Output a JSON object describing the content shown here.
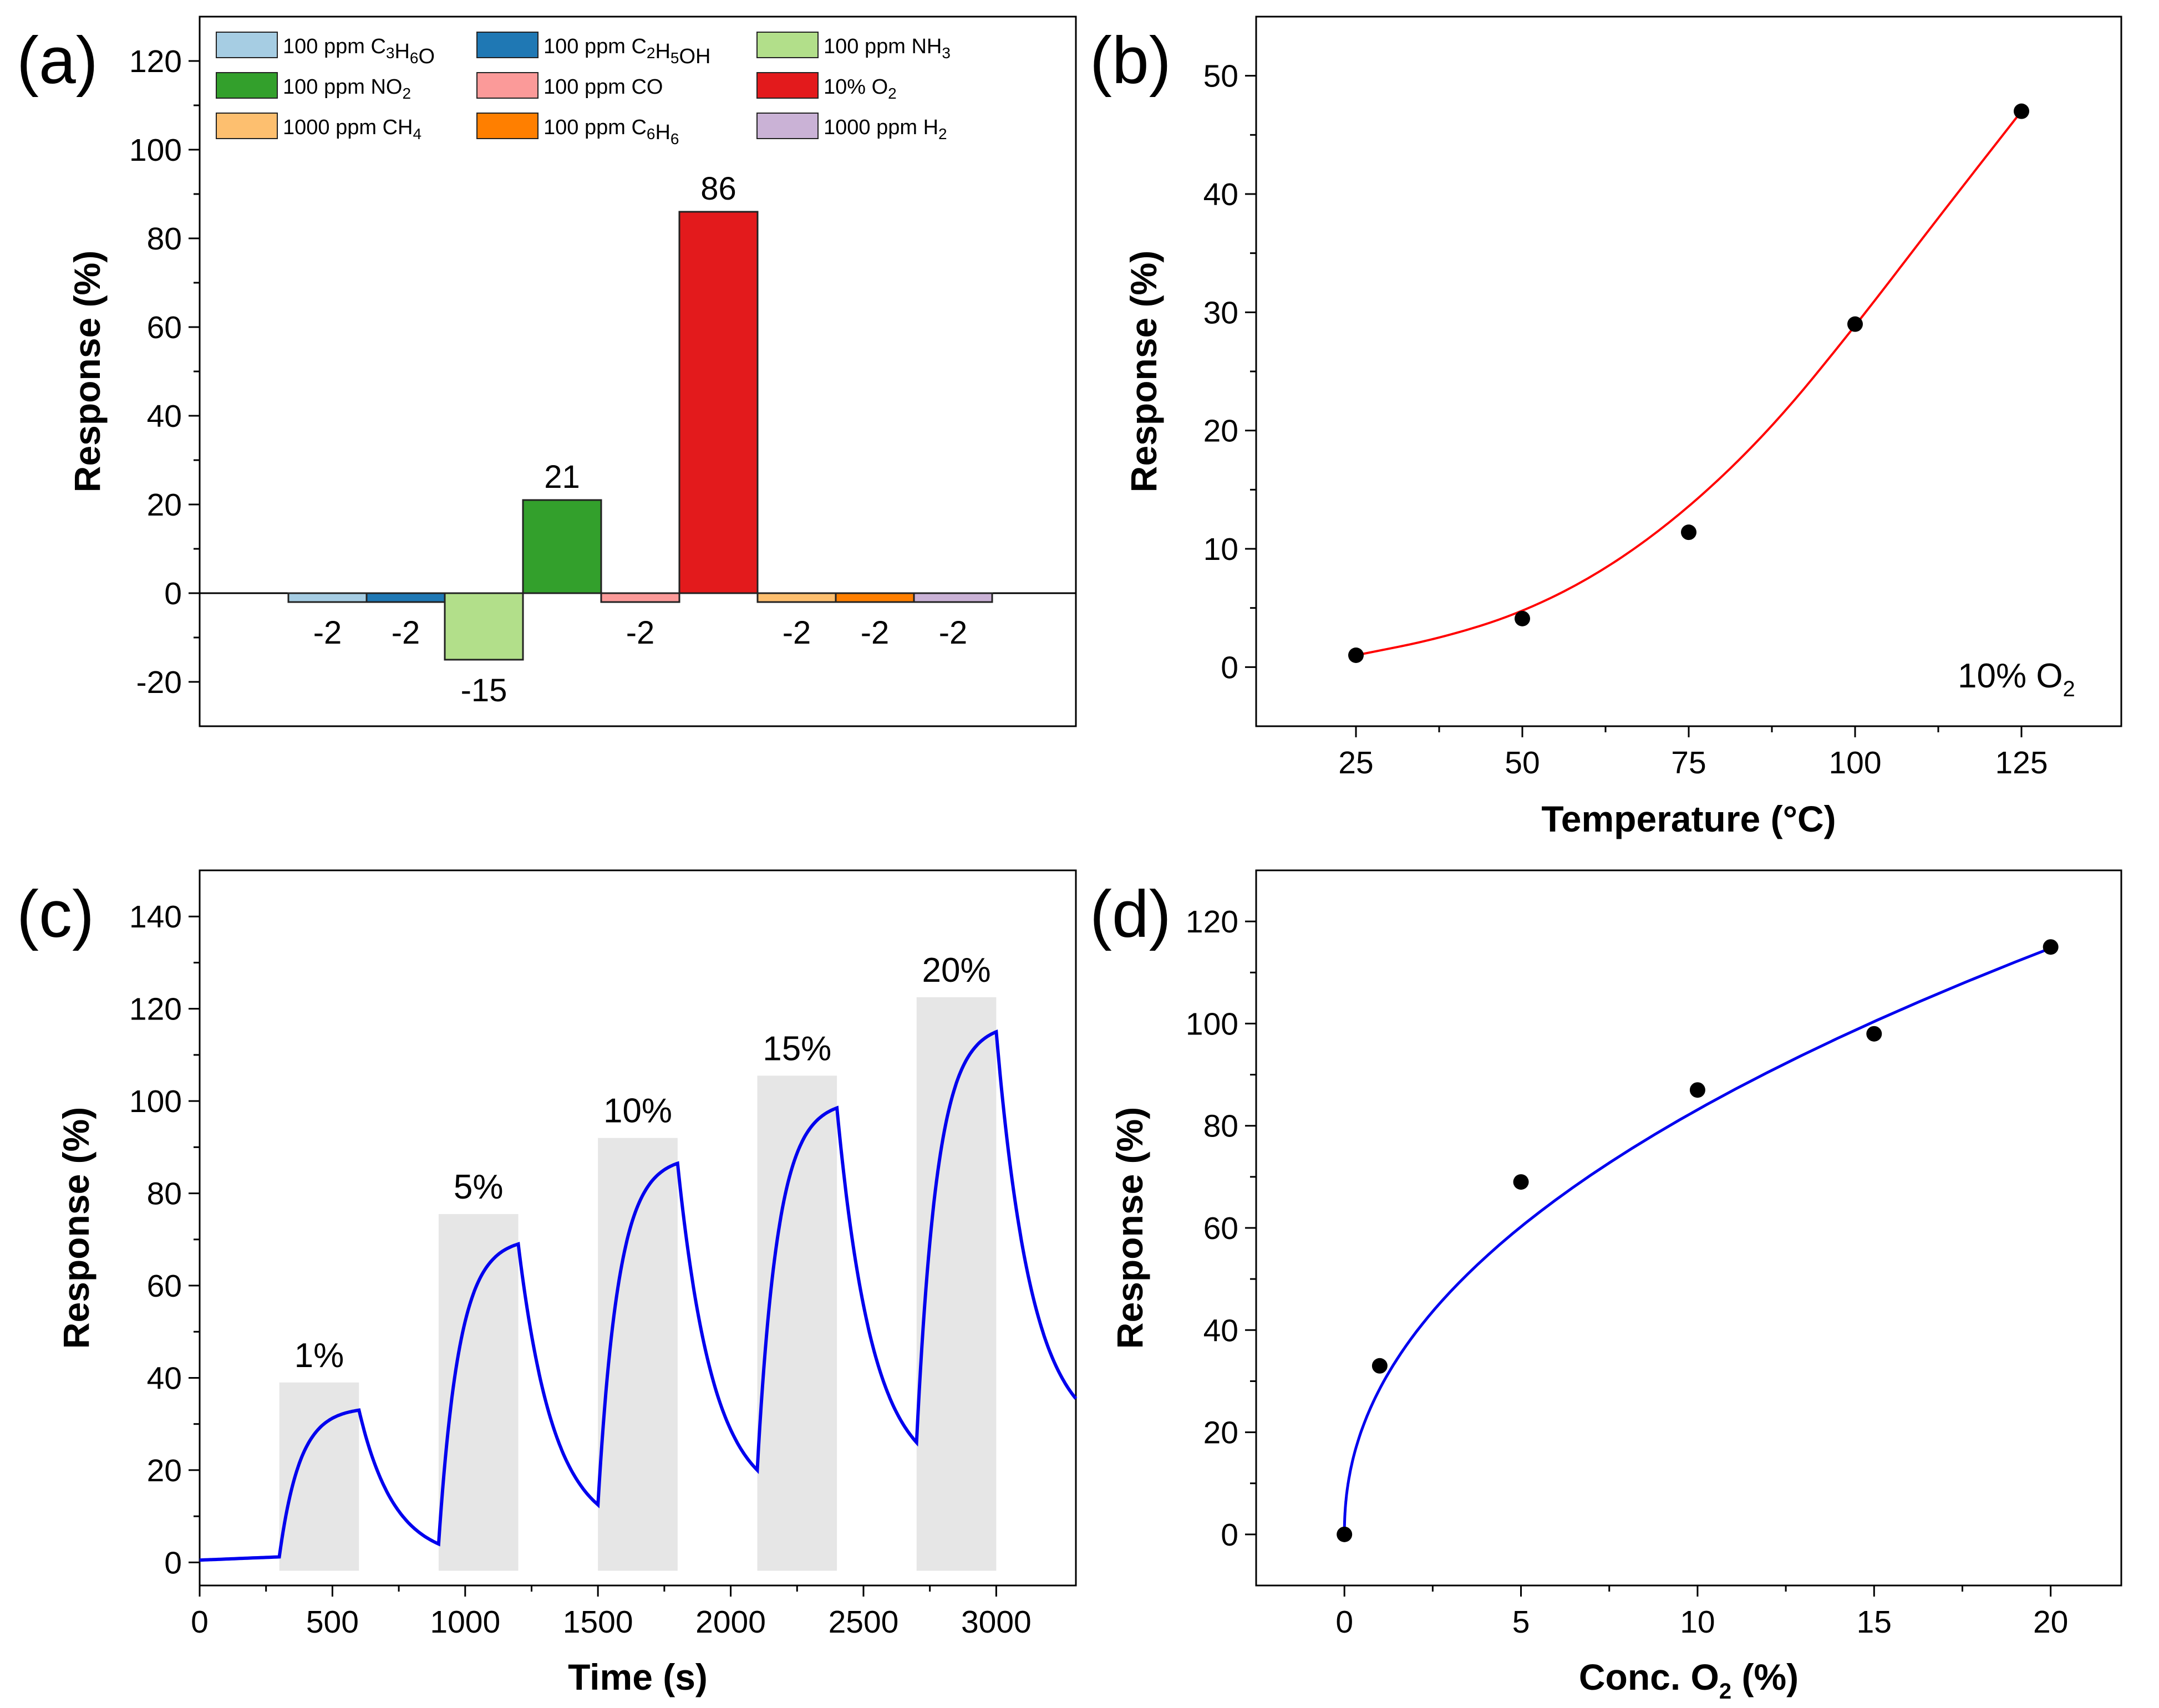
{
  "chart_data": [
    {
      "panel": "(a)",
      "type": "bar",
      "ylabel": "Response (%)",
      "ylim": [
        -30,
        130
      ],
      "yticks": [
        -20,
        0,
        20,
        40,
        60,
        80,
        100,
        120
      ],
      "ytick_labels": [
        "-20",
        "0",
        "20",
        "40",
        "60",
        "80",
        "100",
        "120"
      ],
      "categories": [
        {
          "name": "100 ppm C3H6O",
          "legend_parts": [
            [
              "100 ppm C",
              ""
            ],
            [
              "3",
              "sub"
            ],
            [
              "H",
              ""
            ],
            [
              "6",
              "sub"
            ],
            [
              "O",
              ""
            ]
          ],
          "value": -2,
          "label": "-2",
          "color": "#a6cde3"
        },
        {
          "name": "100 ppm C2H5OH",
          "legend_parts": [
            [
              "100 ppm C",
              ""
            ],
            [
              "2",
              "sub"
            ],
            [
              "H",
              ""
            ],
            [
              "5",
              "sub"
            ],
            [
              "OH",
              ""
            ]
          ],
          "value": -2,
          "label": "-2",
          "color": "#1f78b4"
        },
        {
          "name": "100 ppm NH3",
          "legend_parts": [
            [
              "100 ppm NH",
              ""
            ],
            [
              "3",
              "sub"
            ]
          ],
          "value": -15,
          "label": "-15",
          "color": "#b2df8a"
        },
        {
          "name": "100 ppm NO2",
          "legend_parts": [
            [
              "100 ppm NO",
              ""
            ],
            [
              "2",
              "sub"
            ]
          ],
          "value": 21,
          "label": "21",
          "color": "#33a02c"
        },
        {
          "name": "100 ppm CO",
          "legend_parts": [
            [
              "100 ppm CO",
              ""
            ]
          ],
          "value": -2,
          "label": "-2",
          "color": "#fb9a99"
        },
        {
          "name": "10% O2",
          "legend_parts": [
            [
              "10% O",
              ""
            ],
            [
              "2",
              "sub"
            ]
          ],
          "value": 86,
          "label": "86",
          "color": "#e31a1c"
        },
        {
          "name": "1000 ppm CH4",
          "legend_parts": [
            [
              "1000 ppm CH",
              ""
            ],
            [
              "4",
              "sub"
            ]
          ],
          "value": -2,
          "label": "-2",
          "color": "#fdbf6f"
        },
        {
          "name": "100 ppm C6H6",
          "legend_parts": [
            [
              "100 ppm C",
              ""
            ],
            [
              "6",
              "sub"
            ],
            [
              "H",
              ""
            ],
            [
              "6",
              "sub"
            ]
          ],
          "value": -2,
          "label": "-2",
          "color": "#ff7f00"
        },
        {
          "name": "1000 ppm H2",
          "legend_parts": [
            [
              "1000 ppm H",
              ""
            ],
            [
              "2",
              "sub"
            ]
          ],
          "value": -2,
          "label": "-2",
          "color": "#cab2d6"
        }
      ]
    },
    {
      "panel": "(b)",
      "type": "scatter",
      "xlabel": "Temperature (°C)",
      "ylabel": "Response (%)",
      "xlim": [
        10,
        140
      ],
      "ylim": [
        -5,
        55
      ],
      "xticks": [
        25,
        50,
        75,
        100,
        125
      ],
      "xtick_labels": [
        "25",
        "50",
        "75",
        "100",
        "125"
      ],
      "yticks": [
        0,
        10,
        20,
        30,
        40,
        50
      ],
      "ytick_labels": [
        "0",
        "10",
        "20",
        "30",
        "40",
        "50"
      ],
      "points": [
        [
          25,
          1
        ],
        [
          50,
          4.1
        ],
        [
          75,
          11.4
        ],
        [
          100,
          29
        ],
        [
          125,
          47
        ]
      ],
      "fit_color": "#ff0000",
      "fit_curve": [
        [
          25,
          1
        ],
        [
          37.5,
          2.4
        ],
        [
          50,
          4.6
        ],
        [
          62.5,
          8.2
        ],
        [
          75,
          13.4
        ],
        [
          87.5,
          20.2
        ],
        [
          100,
          28.8
        ],
        [
          112.5,
          38
        ],
        [
          125,
          47
        ]
      ],
      "annotation": {
        "main": "10% O",
        "sub": "2"
      }
    },
    {
      "panel": "(c)",
      "type": "line",
      "xlabel": "Time (s)",
      "ylabel": "Response (%)",
      "xlim": [
        0,
        3300
      ],
      "ylim": [
        -5,
        150
      ],
      "xticks": [
        0,
        500,
        1000,
        1500,
        2000,
        2500,
        3000
      ],
      "xtick_labels": [
        "0",
        "500",
        "1000",
        "1500",
        "2000",
        "2500",
        "3000"
      ],
      "yticks": [
        0,
        20,
        40,
        60,
        80,
        100,
        120,
        140
      ],
      "ytick_labels": [
        "0",
        "20",
        "40",
        "60",
        "80",
        "100",
        "120",
        "140"
      ],
      "line_color": "#0000ee",
      "baseline_start": 0.5,
      "baseline_before_first": 1.2,
      "pulses": [
        {
          "label": "1%",
          "start": 300,
          "end": 600,
          "peak": 33,
          "recovered": 4,
          "box_top": 39
        },
        {
          "label": "5%",
          "start": 900,
          "end": 1200,
          "peak": 69,
          "recovered": 12.5,
          "box_top": 75.5
        },
        {
          "label": "10%",
          "start": 1500,
          "end": 1800,
          "peak": 86.5,
          "recovered": 20,
          "box_top": 92
        },
        {
          "label": "15%",
          "start": 2100,
          "end": 2400,
          "peak": 98.5,
          "recovered": 26,
          "box_top": 105.5
        },
        {
          "label": "20%",
          "start": 2700,
          "end": 3000,
          "peak": 115,
          "recovered": 35.5,
          "box_top": 122.5
        }
      ],
      "end_time": 3300
    },
    {
      "panel": "(d)",
      "type": "scatter",
      "xlabel_main": "Conc. O",
      "xlabel_sub": "2",
      "xlabel_tail": " (%)",
      "ylabel": "Response (%)",
      "xlim": [
        -2.5,
        22
      ],
      "ylim": [
        -10,
        130
      ],
      "xticks": [
        0,
        5,
        10,
        15,
        20
      ],
      "xtick_labels": [
        "0",
        "5",
        "10",
        "15",
        "20"
      ],
      "yticks": [
        0,
        20,
        40,
        60,
        80,
        100,
        120
      ],
      "ytick_labels": [
        "0",
        "20",
        "40",
        "60",
        "80",
        "100",
        "120"
      ],
      "points": [
        [
          0,
          0
        ],
        [
          1,
          33
        ],
        [
          5,
          69
        ],
        [
          10,
          87
        ],
        [
          15,
          98
        ],
        [
          20,
          115
        ]
      ],
      "fit_color": "#0000ee",
      "fit_model": {
        "a": 28.5,
        "b": 0.465
      }
    }
  ]
}
